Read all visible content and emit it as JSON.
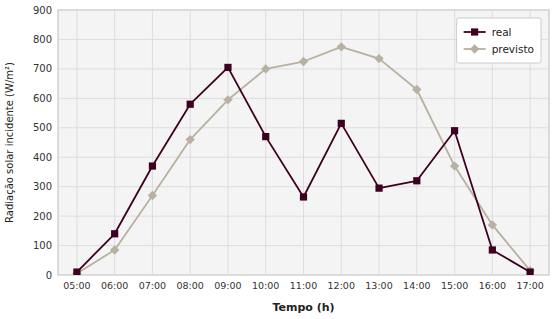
{
  "chart_data": {
    "type": "line",
    "categories": [
      "05:00",
      "06:00",
      "07:00",
      "08:00",
      "09:00",
      "10:00",
      "11:00",
      "12:00",
      "13:00",
      "14:00",
      "15:00",
      "16:00",
      "17:00"
    ],
    "series": [
      {
        "name": "real",
        "color": "#3d0020",
        "marker": "square",
        "values": [
          10,
          140,
          370,
          580,
          705,
          470,
          265,
          515,
          295,
          320,
          490,
          85,
          10
        ]
      },
      {
        "name": "previsto",
        "color": "#b8b0a0",
        "marker": "diamond",
        "values": [
          5,
          85,
          270,
          460,
          595,
          700,
          725,
          775,
          735,
          630,
          370,
          170,
          15
        ]
      }
    ],
    "xlabel": "Tempo (h)",
    "ylabel": "Radiação solar incidente (W/m²)",
    "ylim": [
      0,
      900
    ],
    "yticks": [
      0,
      100,
      200,
      300,
      400,
      500,
      600,
      700,
      800,
      900
    ],
    "grid": true,
    "legend": "upper right"
  }
}
